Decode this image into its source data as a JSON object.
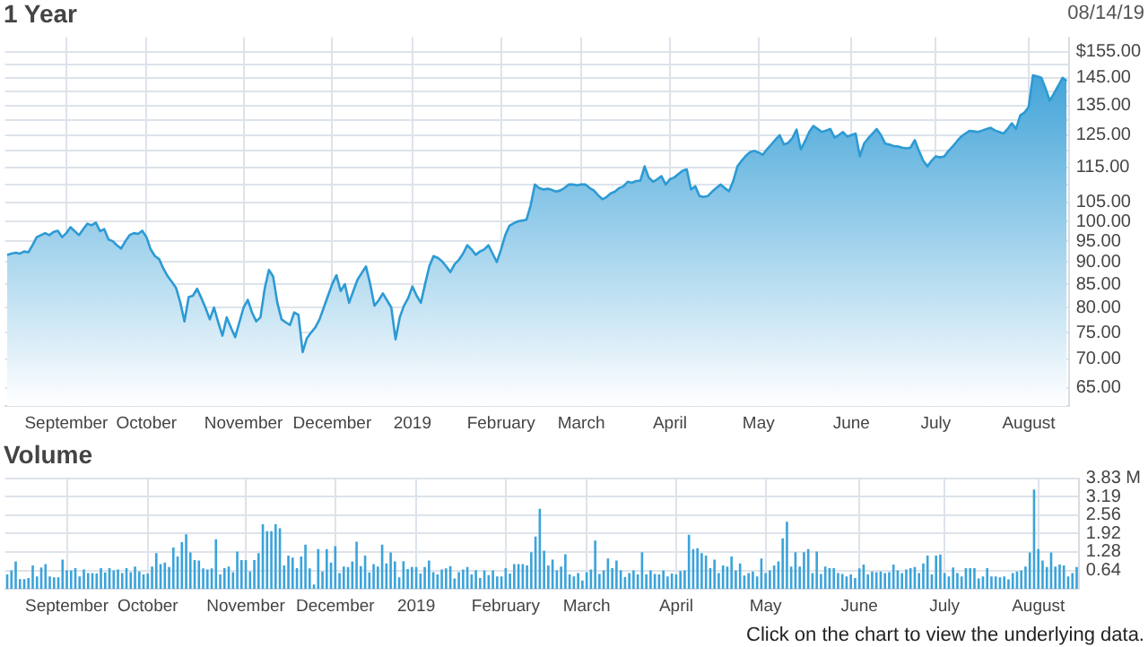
{
  "chart_data": [
    {
      "type": "area",
      "title": "1 Year",
      "annotations": [
        "08/14/19"
      ],
      "log": "y",
      "grid": true,
      "legend": false,
      "categories": [
        null,
        null,
        null,
        null,
        null,
        null,
        null,
        null,
        null,
        null,
        null,
        null,
        null,
        null,
        "September",
        null,
        null,
        null,
        null,
        null,
        null,
        null,
        null,
        null,
        null,
        null,
        null,
        null,
        null,
        null,
        null,
        null,
        null,
        "October",
        null,
        null,
        null,
        null,
        null,
        null,
        null,
        null,
        null,
        null,
        null,
        null,
        null,
        null,
        null,
        null,
        null,
        null,
        null,
        null,
        null,
        null,
        "November",
        null,
        null,
        null,
        null,
        null,
        null,
        null,
        null,
        null,
        null,
        null,
        null,
        null,
        null,
        null,
        null,
        null,
        null,
        null,
        null,
        "December",
        null,
        null,
        null,
        null,
        null,
        null,
        null,
        null,
        null,
        null,
        null,
        null,
        null,
        null,
        null,
        null,
        null,
        null,
        "2019",
        null,
        null,
        null,
        null,
        null,
        null,
        null,
        null,
        null,
        null,
        null,
        null,
        null,
        null,
        null,
        null,
        null,
        null,
        null,
        null,
        "February",
        null,
        null,
        null,
        null,
        null,
        null,
        null,
        null,
        null,
        null,
        null,
        null,
        null,
        null,
        null,
        null,
        null,
        null,
        "March",
        null,
        null,
        null,
        null,
        null,
        null,
        null,
        null,
        null,
        null,
        null,
        null,
        null,
        null,
        null,
        null,
        null,
        null,
        null,
        null,
        "April",
        null,
        null,
        null,
        null,
        null,
        null,
        null,
        null,
        null,
        null,
        null,
        null,
        null,
        null,
        null,
        null,
        null,
        null,
        null,
        null,
        "May",
        null,
        null,
        null,
        null,
        null,
        null,
        null,
        null,
        null,
        null,
        null,
        null,
        null,
        null,
        null,
        null,
        null,
        null,
        null,
        null,
        null,
        "June",
        null,
        null,
        null,
        null,
        null,
        null,
        null,
        null,
        null,
        null,
        null,
        null,
        null,
        null,
        null,
        null,
        null,
        null,
        null,
        "July",
        null,
        null,
        null,
        null,
        null,
        null,
        null,
        null,
        null,
        null,
        null,
        null,
        null,
        null,
        null,
        null,
        null,
        null,
        null,
        null,
        null,
        "August",
        null,
        null,
        null,
        null,
        null,
        null,
        null,
        null,
        null
      ],
      "series": [
        {
          "color": "#2d9ad4",
          "values": [
            91.7,
            92,
            92.2,
            92,
            92.5,
            92.3,
            94,
            96,
            96.5,
            97,
            96.5,
            97.3,
            97.6,
            96,
            97,
            98.5,
            97.5,
            96.5,
            98,
            99.4,
            99,
            99.7,
            97.5,
            98,
            95.4,
            95,
            94,
            93.2,
            95,
            96.5,
            97,
            96.8,
            97.6,
            96,
            93,
            91.4,
            90.7,
            88.5,
            86.8,
            85.5,
            84.2,
            81.1,
            77.2,
            82.2,
            82.5,
            84,
            82,
            79.9,
            77.6,
            80,
            77,
            74.4,
            78,
            76,
            74.1,
            77,
            80,
            81.6,
            79,
            77.2,
            78,
            84,
            88.2,
            86.7,
            81,
            77.6,
            77,
            76.5,
            79,
            78.5,
            71.3,
            73.9,
            75,
            76,
            77.6,
            80,
            82.5,
            85,
            87,
            83.5,
            85,
            81,
            83.5,
            86,
            87.5,
            89,
            85,
            80.4,
            81.5,
            83,
            81.5,
            80,
            73.7,
            78,
            80.4,
            82,
            84.5,
            82.5,
            81,
            85,
            89,
            91.4,
            91,
            90.2,
            89,
            87.7,
            89.5,
            90.5,
            92,
            94,
            93,
            91.7,
            92.5,
            93,
            94,
            92,
            90,
            93,
            96.5,
            98.9,
            99.5,
            100,
            100.2,
            100.4,
            104.2,
            110,
            109,
            108.6,
            108.8,
            108.5,
            108,
            108.3,
            109,
            110,
            110,
            109.8,
            110,
            110,
            109,
            108.3,
            107,
            105.9,
            106.5,
            107.5,
            108,
            109,
            109.5,
            110.8,
            110.5,
            111,
            111.1,
            115.3,
            112,
            110.8,
            111.5,
            112.4,
            110,
            111.5,
            112,
            113,
            114,
            114.4,
            108.6,
            109.5,
            106.8,
            106.5,
            106.8,
            108,
            109,
            110,
            109,
            108.1,
            111,
            115.3,
            117,
            118.5,
            119.6,
            120,
            119.5,
            118.8,
            120.5,
            122,
            123.5,
            125,
            122,
            122.5,
            124,
            126.8,
            120.5,
            123,
            126,
            128,
            127,
            126,
            126.5,
            127,
            124.2,
            125,
            126,
            124.5,
            125,
            125.5,
            118.3,
            122.3,
            124,
            125.5,
            127,
            125,
            122.3,
            122,
            121.5,
            121.4,
            121,
            120.8,
            121,
            123.4,
            120,
            117,
            115.3,
            117,
            118.3,
            118,
            118.3,
            120,
            121.4,
            123,
            124.5,
            125.5,
            126.4,
            126.2,
            126,
            126.5,
            127,
            127.4,
            126.5,
            126,
            125.5,
            127,
            128.9,
            127,
            131.6,
            132.5,
            134.5,
            145.9,
            145.5,
            145,
            141,
            136.6,
            139.3,
            142,
            145,
            143.8
          ]
        }
      ],
      "ylim": [
        62,
        161
      ],
      "yticks": [
        {
          "value": 155,
          "label": "$155.00"
        },
        {
          "value": 150,
          "label": null
        },
        {
          "value": 145,
          "label": "145.00"
        },
        {
          "value": 140,
          "label": null
        },
        {
          "value": 135,
          "label": "135.00"
        },
        {
          "value": 130,
          "label": null
        },
        {
          "value": 125,
          "label": "125.00"
        },
        {
          "value": 120,
          "label": null
        },
        {
          "value": 115,
          "label": "115.00"
        },
        {
          "value": 110,
          "label": null
        },
        {
          "value": 105,
          "label": "105.00"
        },
        {
          "value": 100,
          "label": "100.00"
        },
        {
          "value": 95,
          "label": "95.00"
        },
        {
          "value": 90,
          "label": "90.00"
        },
        {
          "value": 85,
          "label": "85.00"
        },
        {
          "value": 80,
          "label": "80.00"
        },
        {
          "value": 75,
          "label": "75.00"
        },
        {
          "value": 70,
          "label": "70.00"
        },
        {
          "value": 65,
          "label": "65.00"
        }
      ]
    },
    {
      "type": "bar",
      "title": "Volume",
      "annotations": [
        "Click on the chart to view the underlying data."
      ],
      "grid": true,
      "legend": false,
      "categories": [
        null,
        null,
        null,
        null,
        null,
        null,
        null,
        null,
        null,
        null,
        null,
        null,
        null,
        null,
        "September",
        null,
        null,
        null,
        null,
        null,
        null,
        null,
        null,
        null,
        null,
        null,
        null,
        null,
        null,
        null,
        null,
        null,
        null,
        "October",
        null,
        null,
        null,
        null,
        null,
        null,
        null,
        null,
        null,
        null,
        null,
        null,
        null,
        null,
        null,
        null,
        null,
        null,
        null,
        null,
        null,
        null,
        "November",
        null,
        null,
        null,
        null,
        null,
        null,
        null,
        null,
        null,
        null,
        null,
        null,
        null,
        null,
        null,
        null,
        null,
        null,
        null,
        null,
        "December",
        null,
        null,
        null,
        null,
        null,
        null,
        null,
        null,
        null,
        null,
        null,
        null,
        null,
        null,
        null,
        null,
        null,
        null,
        "2019",
        null,
        null,
        null,
        null,
        null,
        null,
        null,
        null,
        null,
        null,
        null,
        null,
        null,
        null,
        null,
        null,
        null,
        null,
        null,
        null,
        "February",
        null,
        null,
        null,
        null,
        null,
        null,
        null,
        null,
        null,
        null,
        null,
        null,
        null,
        null,
        null,
        null,
        null,
        null,
        "March",
        null,
        null,
        null,
        null,
        null,
        null,
        null,
        null,
        null,
        null,
        null,
        null,
        null,
        null,
        null,
        null,
        null,
        null,
        null,
        null,
        "April",
        null,
        null,
        null,
        null,
        null,
        null,
        null,
        null,
        null,
        null,
        null,
        null,
        null,
        null,
        null,
        null,
        null,
        null,
        null,
        null,
        "May",
        null,
        null,
        null,
        null,
        null,
        null,
        null,
        null,
        null,
        null,
        null,
        null,
        null,
        null,
        null,
        null,
        null,
        null,
        null,
        null,
        null,
        "June",
        null,
        null,
        null,
        null,
        null,
        null,
        null,
        null,
        null,
        null,
        null,
        null,
        null,
        null,
        null,
        null,
        null,
        null,
        null,
        "July",
        null,
        null,
        null,
        null,
        null,
        null,
        null,
        null,
        null,
        null,
        null,
        null,
        null,
        null,
        null,
        null,
        null,
        null,
        null,
        null,
        null,
        "August",
        null,
        null,
        null,
        null,
        null,
        null,
        null,
        null,
        null
      ],
      "series": [
        {
          "color": "#3ba3da",
          "values": [
            0.5,
            0.64,
            0.95,
            0.34,
            0.34,
            0.38,
            0.81,
            0.43,
            0.74,
            0.86,
            0.43,
            0.4,
            0.4,
            1.01,
            0.64,
            0.64,
            0.72,
            0.43,
            0.67,
            0.55,
            0.55,
            0.53,
            0.72,
            0.57,
            0.72,
            0.64,
            0.67,
            0.55,
            0.72,
            0.58,
            0.77,
            0.6,
            0.5,
            0.53,
            0.77,
            1.24,
            0.86,
            0.91,
            0.76,
            1.43,
            1.12,
            1.62,
            1.89,
            1.26,
            1.0,
            0.98,
            0.71,
            0.67,
            0.71,
            1.72,
            0.5,
            0.72,
            0.77,
            0.58,
            1.29,
            1.0,
            1.0,
            0.6,
            1.0,
            1.24,
            2.24,
            2.0,
            2.0,
            2.24,
            2.1,
            0.81,
            1.15,
            1.08,
            0.72,
            1.12,
            1.53,
            0.71,
            0.15,
            1.38,
            0.6,
            1.38,
            0.91,
            1.48,
            0.55,
            0.77,
            0.76,
            0.95,
            1.63,
            0.79,
            1.15,
            0.57,
            0.86,
            0.77,
            1.53,
            0.88,
            1.26,
            0.95,
            0.4,
            0.96,
            0.69,
            0.76,
            0.76,
            0.53,
            0.76,
            0.98,
            0.58,
            0.5,
            0.67,
            0.71,
            0.79,
            0.36,
            0.58,
            0.67,
            0.76,
            0.5,
            0.65,
            0.38,
            0.64,
            0.48,
            0.64,
            0.43,
            0.43,
            0.72,
            0.53,
            0.86,
            0.86,
            0.86,
            0.81,
            1.27,
            1.81,
            2.77,
            1.32,
            0.81,
            1.01,
            0.64,
            0.77,
            1.2,
            0.5,
            0.43,
            0.55,
            0.29,
            0.58,
            0.67,
            1.67,
            0.52,
            0.64,
            1.05,
            0.72,
            0.98,
            0.64,
            0.41,
            0.55,
            0.64,
            0.5,
            1.27,
            0.5,
            0.64,
            0.52,
            0.5,
            0.64,
            0.43,
            0.53,
            0.5,
            0.62,
            0.64,
            1.87,
            1.38,
            1.41,
            1.24,
            1.15,
            0.72,
            1.01,
            0.55,
            0.81,
            0.77,
            1.12,
            0.64,
            0.88,
            0.46,
            0.55,
            0.6,
            0.43,
            1.05,
            0.55,
            0.64,
            0.81,
            0.95,
            1.75,
            2.32,
            0.77,
            1.27,
            0.77,
            1.27,
            1.38,
            0.55,
            1.29,
            0.52,
            0.77,
            0.72,
            0.72,
            0.55,
            0.52,
            0.43,
            0.5,
            0.38,
            0.71,
            0.84,
            0.5,
            0.6,
            0.58,
            0.6,
            0.55,
            0.58,
            0.84,
            0.64,
            0.55,
            0.67,
            0.72,
            0.76,
            0.55,
            0.88,
            1.15,
            0.5,
            1.15,
            1.19,
            0.55,
            0.43,
            0.74,
            0.55,
            0.43,
            0.72,
            0.72,
            0.72,
            0.36,
            0.43,
            0.72,
            0.43,
            0.43,
            0.4,
            0.43,
            0.33,
            0.55,
            0.6,
            0.64,
            0.77,
            1.26,
            3.44,
            1.38,
            0.98,
            0.76,
            1.26,
            0.77,
            0.84,
            0.81,
            0.43,
            0.55,
            0.76
          ]
        }
      ],
      "ylim": [
        0,
        3.83
      ],
      "yticks": [
        0.64,
        1.28,
        1.92,
        2.56,
        3.19,
        {
          "value": 3.83,
          "label": "3.83 M"
        }
      ]
    }
  ]
}
